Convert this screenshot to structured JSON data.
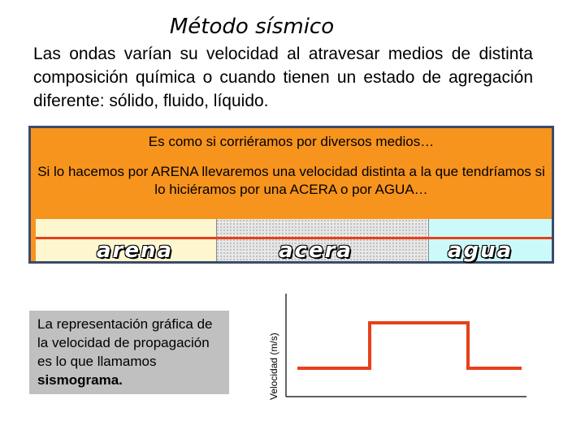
{
  "title": "Método sísmico",
  "intro": "Las ondas varían su velocidad al atravesar medios de distinta composición química o cuando tienen un estado de agregación diferente: sólido, fluido, líquido.",
  "panel": {
    "line1": "Es como si corriéramos por diversos medios…",
    "line2": "Si lo hacemos por ARENA llevaremos una velocidad distinta a la que tendríamos si lo hiciéramos por una ACERA o por AGUA…",
    "strips": [
      {
        "label": "arena",
        "color": "#fdf6cf"
      },
      {
        "label": "acera",
        "color": "#e5e5e5"
      },
      {
        "label": "agua",
        "color": "#ccfafa"
      }
    ],
    "panel_color": "#f7941d",
    "line_color": "#e8401a"
  },
  "caption": {
    "text": "La representación gráfica de la velocidad de propagación es lo que llamamos ",
    "bold": "sismograma."
  },
  "seismogram": {
    "ylabel": "Velocidad (m/s)",
    "line_color": "#e8401a",
    "levels": [
      {
        "medium": "arena",
        "level": 0.25
      },
      {
        "medium": "acera",
        "level": 0.75
      },
      {
        "medium": "agua",
        "level": 0.25
      }
    ]
  }
}
